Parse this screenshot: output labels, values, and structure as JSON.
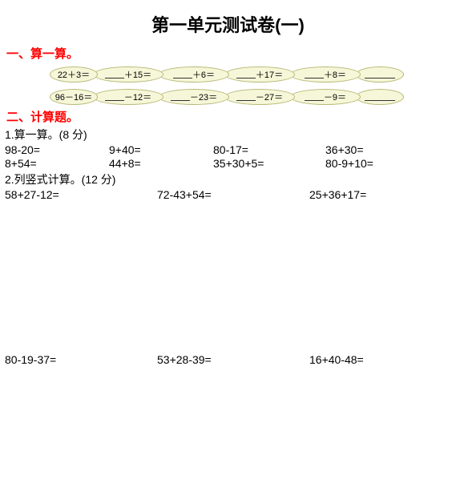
{
  "title": "第一单元测试卷(一)",
  "section1": {
    "header": "一、算一算。",
    "row1": {
      "start": "22＋3＝",
      "ops": [
        "＋15＝",
        "＋6＝",
        "＋17＝",
        "＋8＝"
      ]
    },
    "row2": {
      "start": "96－16＝",
      "ops": [
        "－12＝",
        "－23＝",
        "－27＝",
        "－9＝"
      ]
    }
  },
  "section2": {
    "header": "二、计算题。",
    "part1": {
      "label": "1.算一算。(8 分)",
      "rows": [
        [
          "98-20=",
          "9+40=",
          "80-17=",
          "36+30="
        ],
        [
          "8+54=",
          "44+8=",
          "35+30+5=",
          "80-9+10="
        ]
      ]
    },
    "part2": {
      "label": "2.列竖式计算。(12 分)",
      "rows": [
        [
          "58+27-12=",
          "72-43+54=",
          "25+36+17="
        ],
        [
          "80-19-37=",
          "53+28-39=",
          "16+40-48="
        ]
      ]
    }
  },
  "colors": {
    "red": "#ff0000",
    "bubble_bg": "#f6f6d8",
    "bubble_border": "#b8b878",
    "text": "#000000"
  }
}
